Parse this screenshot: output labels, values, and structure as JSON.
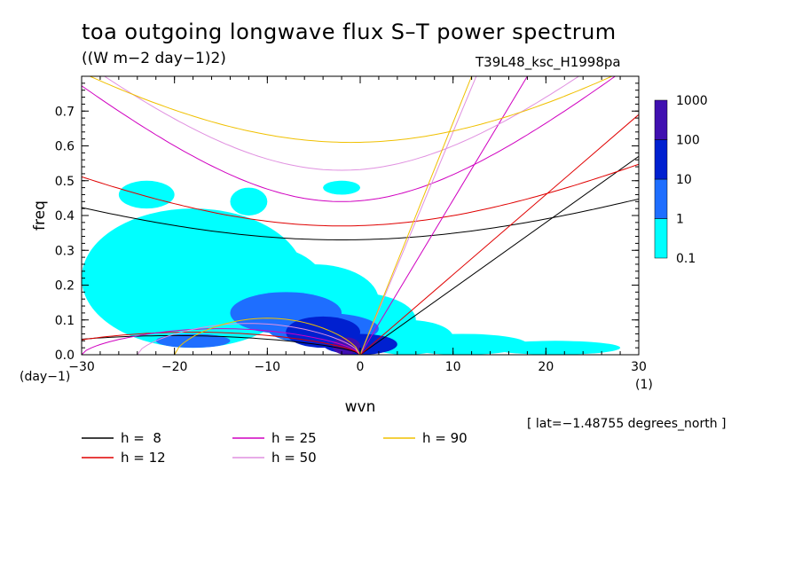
{
  "title": "toa outgoing longwave flux S–T power spectrum",
  "units_line": "((W m−2 day−1)2)",
  "run_id": "T39L48_ksc_H1998pa",
  "latitude_note": "[ lat=−1.48755 degrees_north ]",
  "chart_data": {
    "type": "heatmap",
    "xlabel": "wvn",
    "ylabel": "freq",
    "x_unit": "(1)",
    "y_unit": "(day−1)",
    "xlim": [
      -30,
      30
    ],
    "ylim": [
      0,
      0.8
    ],
    "x_ticks": [
      "−30",
      "−20",
      "−10",
      "0",
      "10",
      "20",
      "30"
    ],
    "x_tick_values": [
      -30,
      -20,
      -10,
      0,
      10,
      20,
      30
    ],
    "y_ticks": [
      "0.0",
      "0.1",
      "0.2",
      "0.3",
      "0.4",
      "0.5",
      "0.6",
      "0.7"
    ],
    "y_tick_values": [
      0,
      0.1,
      0.2,
      0.3,
      0.4,
      0.5,
      0.6,
      0.7
    ],
    "colorbar": {
      "levels": [
        "0.1",
        "1",
        "10",
        "100",
        "1000"
      ],
      "colors": [
        "#00ffff",
        "#1e6eff",
        "#0020d0",
        "#4010b0"
      ]
    },
    "dispersion_curves": [
      {
        "name": "h =  8",
        "h": 8,
        "color": "#000000"
      },
      {
        "name": "h = 12",
        "h": 12,
        "color": "#e00000"
      },
      {
        "name": "h = 25",
        "h": 25,
        "color": "#d000c0"
      },
      {
        "name": "h = 50",
        "h": 50,
        "color": "#e090e0"
      },
      {
        "name": "h = 90",
        "h": 90,
        "color": "#f0c000"
      }
    ],
    "kelvin_wave_endpoints": [
      {
        "h": 8,
        "wvn": 30,
        "freq": 0.57
      },
      {
        "h": 12,
        "wvn": 30,
        "freq": 0.69
      },
      {
        "h": 25,
        "wvn": 18,
        "freq": 0.8
      },
      {
        "h": 50,
        "wvn": 12.5,
        "freq": 0.8
      },
      {
        "h": 90,
        "wvn": 12,
        "freq": 0.8
      }
    ],
    "ig_wave_minima": [
      {
        "h": 8,
        "wvn": -2,
        "freq": 0.33
      },
      {
        "h": 12,
        "wvn": -2,
        "freq": 0.37
      },
      {
        "h": 25,
        "wvn": -2,
        "freq": 0.44
      },
      {
        "h": 50,
        "wvn": -2,
        "freq": 0.53
      },
      {
        "h": 90,
        "wvn": -1,
        "freq": 0.61
      }
    ],
    "rossby_wave_peaks": [
      {
        "h": 8,
        "wvn": -20,
        "freq": 0.055
      },
      {
        "h": 12,
        "wvn": -18,
        "freq": 0.065
      },
      {
        "h": 25,
        "wvn": -15,
        "freq": 0.075
      },
      {
        "h": 50,
        "wvn": -12,
        "freq": 0.09
      },
      {
        "h": 90,
        "wvn": -10,
        "freq": 0.105
      }
    ],
    "power_regions": [
      {
        "wvn_center": -8,
        "freq_center": 0.15,
        "level": "0.1-1",
        "extent": "wide"
      },
      {
        "wvn_center": -5,
        "freq_center": 0.08,
        "level": "1-10"
      },
      {
        "wvn_center": -3,
        "freq_center": 0.05,
        "level": "10-100"
      },
      {
        "wvn_center": -1,
        "freq_center": 0.02,
        "level": "100-1000"
      }
    ]
  }
}
